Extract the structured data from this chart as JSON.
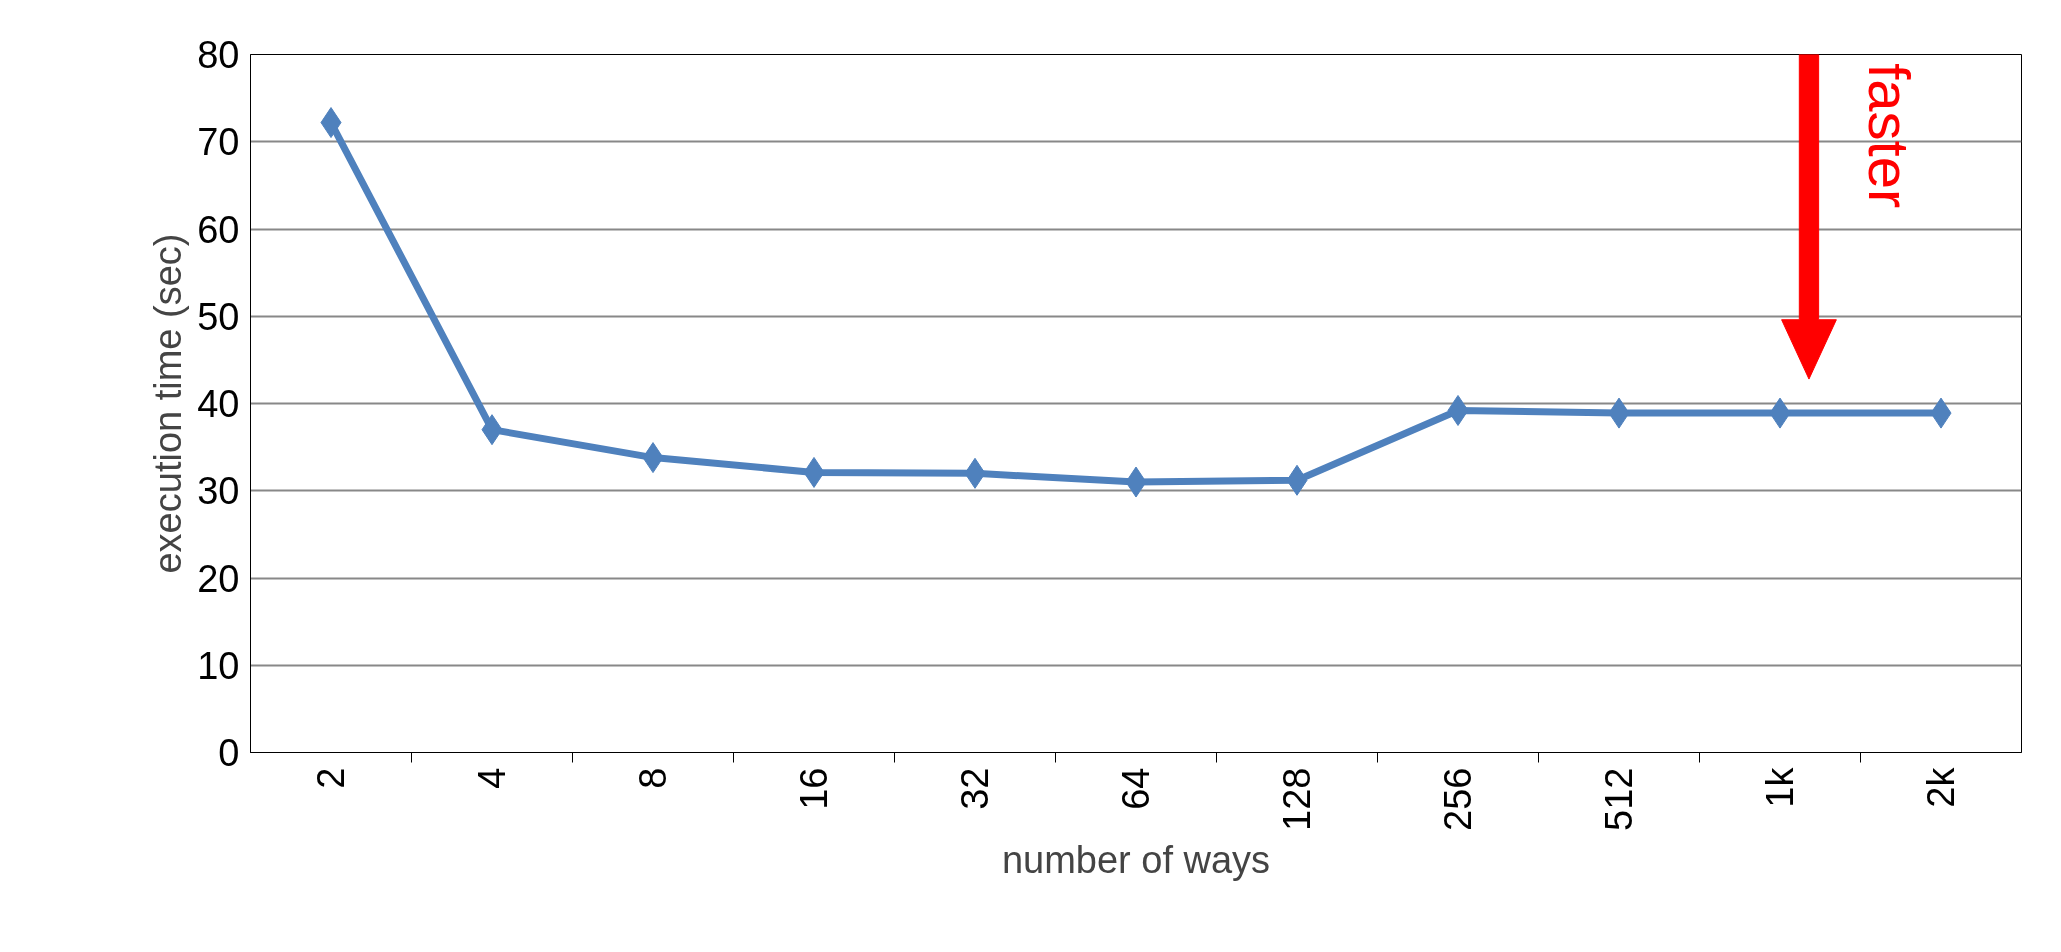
{
  "chart_data": {
    "type": "line",
    "xlabel": "number of ways",
    "ylabel": "execution time (sec)",
    "categories": [
      "2",
      "4",
      "8",
      "16",
      "32",
      "64",
      "128",
      "256",
      "512",
      "1k",
      "2k"
    ],
    "series": [
      {
        "color": "#4f81bd",
        "values": [
          72.2,
          37.0,
          33.8,
          32.1,
          32.0,
          31.0,
          31.2,
          39.2,
          38.9,
          38.9,
          38.9
        ]
      }
    ],
    "ylim": [
      0,
      80
    ],
    "yticks": [
      0,
      10,
      20,
      30,
      40,
      50,
      60,
      70,
      80
    ],
    "grid": "y",
    "marker": "diamond",
    "line_style": "solid",
    "annotations": [
      "faster"
    ]
  }
}
